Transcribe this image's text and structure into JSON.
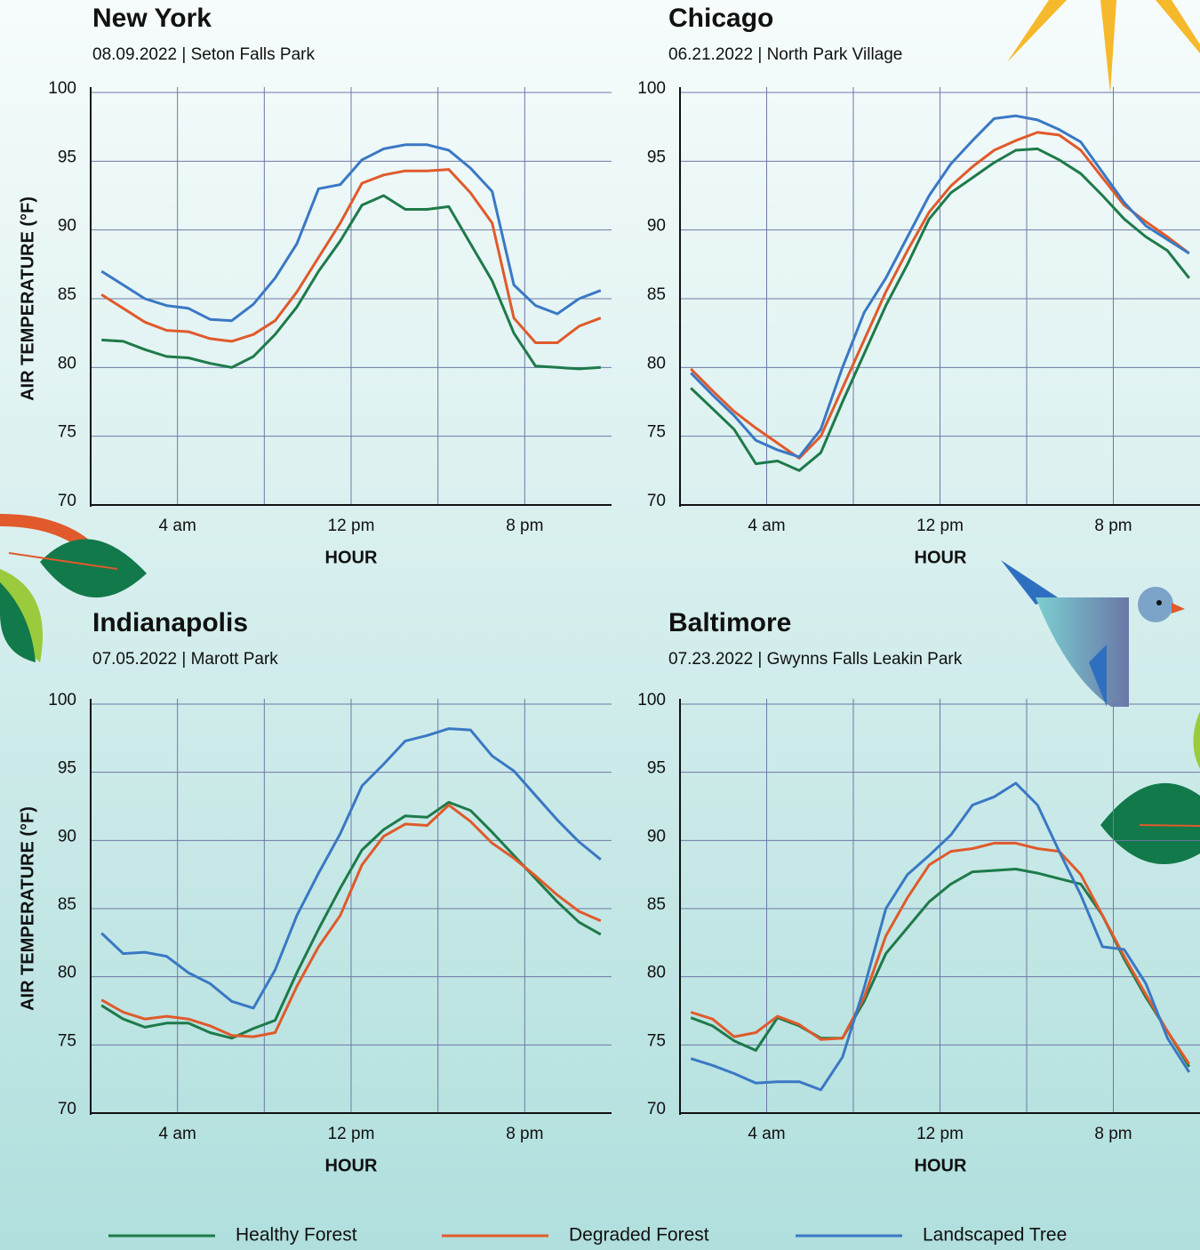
{
  "chart_data": [
    {
      "type": "line",
      "title": "New York",
      "subtitle": "08.09.2022  |  Seton Falls Park",
      "x_label": "HOUR",
      "y_label": "AIR TEMPERATURE (°F)",
      "x": [
        0.5,
        1.5,
        2.5,
        3.5,
        4.5,
        5.5,
        6.5,
        7.5,
        8.5,
        9.5,
        10.5,
        11.5,
        12.5,
        13.5,
        14.5,
        15.5,
        16.5,
        17.5,
        18.5,
        19.5,
        20.5,
        21.5,
        22.5,
        23.5
      ],
      "xlim": [
        0,
        24
      ],
      "xticks": [
        {
          "value": 4,
          "label": "4 am"
        },
        {
          "value": 8,
          "label": null
        },
        {
          "value": 12,
          "label": "12 pm"
        },
        {
          "value": 16,
          "label": null
        },
        {
          "value": 20,
          "label": "8 pm"
        }
      ],
      "ylim": [
        70,
        100
      ],
      "yticks": [
        70,
        75,
        80,
        85,
        90,
        95,
        100
      ],
      "grid": true,
      "series": [
        {
          "name": "Healthy Forest",
          "color": "#1e7a4a",
          "values": [
            82,
            81.9,
            81.3,
            80.8,
            80.7,
            80.3,
            80,
            80.8,
            82.4,
            84.4,
            87,
            89.2,
            91.8,
            92.5,
            91.5,
            91.5,
            91.7,
            89,
            86.3,
            82.5,
            80.1,
            80,
            79.9,
            80
          ]
        },
        {
          "name": "Degraded Forest",
          "color": "#e05a2b",
          "values": [
            85.3,
            84.3,
            83.3,
            82.7,
            82.6,
            82.1,
            81.9,
            82.4,
            83.4,
            85.5,
            88,
            90.5,
            93.4,
            94,
            94.3,
            94.3,
            94.4,
            92.7,
            90.5,
            83.6,
            81.8,
            81.8,
            83,
            83.6
          ]
        },
        {
          "name": "Landscaped Tree",
          "color": "#3a78c4",
          "values": [
            87,
            86,
            85,
            84.5,
            84.3,
            83.5,
            83.4,
            84.6,
            86.5,
            89,
            93,
            93.3,
            95.1,
            95.9,
            96.2,
            96.2,
            95.8,
            94.5,
            92.8,
            86,
            84.5,
            83.9,
            85,
            85.6
          ]
        }
      ]
    },
    {
      "type": "line",
      "title": "Chicago",
      "subtitle": "06.21.2022  |  North Park Village",
      "x_label": "HOUR",
      "x": [
        0.5,
        1.5,
        2.5,
        3.5,
        4.5,
        5.5,
        6.5,
        7.5,
        8.5,
        9.5,
        10.5,
        11.5,
        12.5,
        13.5,
        14.5,
        15.5,
        16.5,
        17.5,
        18.5,
        19.5,
        20.5,
        21.5,
        22.5,
        23.5
      ],
      "xlim": [
        0,
        24
      ],
      "xticks": [
        {
          "value": 4,
          "label": "4 am"
        },
        {
          "value": 8,
          "label": null
        },
        {
          "value": 12,
          "label": "12 pm"
        },
        {
          "value": 16,
          "label": null
        },
        {
          "value": 20,
          "label": "8 pm"
        }
      ],
      "ylim": [
        70,
        100
      ],
      "yticks": [
        70,
        75,
        80,
        85,
        90,
        95,
        100
      ],
      "grid": true,
      "series": [
        {
          "name": "Healthy Forest",
          "color": "#1e7a4a",
          "values": [
            78.5,
            77,
            75.5,
            73,
            73.2,
            72.5,
            73.8,
            77.5,
            81,
            84.5,
            87.5,
            90.8,
            92.7,
            93.8,
            94.9,
            95.8,
            95.9,
            95.1,
            94.1,
            92.5,
            90.8,
            89.5,
            88.5,
            86.5
          ]
        },
        {
          "name": "Degraded Forest",
          "color": "#e05a2b",
          "values": [
            79.9,
            78.3,
            76.8,
            75.6,
            74.5,
            73.4,
            75,
            78.5,
            82,
            85.5,
            88.5,
            91.3,
            93.2,
            94.6,
            95.8,
            96.5,
            97.1,
            96.9,
            95.8,
            93.8,
            91.8,
            90.6,
            89.5,
            88.3
          ]
        },
        {
          "name": "Landscaped Tree",
          "color": "#3a78c4",
          "values": [
            79.6,
            78,
            76.5,
            74.7,
            74,
            73.5,
            75.5,
            80,
            84,
            86.5,
            89.5,
            92.5,
            94.8,
            96.5,
            98.1,
            98.3,
            98,
            97.3,
            96.4,
            94.2,
            92,
            90.3,
            89.3,
            88.3
          ]
        }
      ]
    },
    {
      "type": "line",
      "title": "Indianapolis",
      "subtitle": "07.05.2022  |  Marott Park",
      "x_label": "HOUR",
      "y_label": "AIR TEMPERATURE (°F)",
      "x": [
        0.5,
        1.5,
        2.5,
        3.5,
        4.5,
        5.5,
        6.5,
        7.5,
        8.5,
        9.5,
        10.5,
        11.5,
        12.5,
        13.5,
        14.5,
        15.5,
        16.5,
        17.5,
        18.5,
        19.5,
        20.5,
        21.5,
        22.5,
        23.5
      ],
      "xlim": [
        0,
        24
      ],
      "xticks": [
        {
          "value": 4,
          "label": "4 am"
        },
        {
          "value": 8,
          "label": null
        },
        {
          "value": 12,
          "label": "12 pm"
        },
        {
          "value": 16,
          "label": null
        },
        {
          "value": 20,
          "label": "8 pm"
        }
      ],
      "ylim": [
        70,
        100
      ],
      "yticks": [
        70,
        75,
        80,
        85,
        90,
        95,
        100
      ],
      "grid": true,
      "series": [
        {
          "name": "Healthy Forest",
          "color": "#1e7a4a",
          "values": [
            77.9,
            76.9,
            76.3,
            76.6,
            76.6,
            75.9,
            75.5,
            76.2,
            76.8,
            80.3,
            83.5,
            86.5,
            89.3,
            90.8,
            91.8,
            91.7,
            92.8,
            92.2,
            90.6,
            88.9,
            87.2,
            85.5,
            84,
            83.1
          ]
        },
        {
          "name": "Degraded Forest",
          "color": "#e05a2b",
          "values": [
            78.3,
            77.4,
            76.9,
            77.1,
            76.9,
            76.4,
            75.7,
            75.6,
            75.9,
            79.3,
            82.2,
            84.5,
            88.2,
            90.3,
            91.2,
            91.1,
            92.6,
            91.4,
            89.8,
            88.7,
            87.4,
            86,
            84.8,
            84.1
          ]
        },
        {
          "name": "Landscaped Tree",
          "color": "#3a78c4",
          "values": [
            83.2,
            81.7,
            81.8,
            81.5,
            80.3,
            79.5,
            78.2,
            77.7,
            80.5,
            84.5,
            87.6,
            90.5,
            94,
            95.6,
            97.3,
            97.7,
            98.2,
            98.1,
            96.2,
            95.1,
            93.3,
            91.5,
            89.9,
            88.6
          ]
        }
      ]
    },
    {
      "type": "line",
      "title": "Baltimore",
      "subtitle": "07.23.2022  |  Gwynns Falls Leakin Park",
      "x_label": "HOUR",
      "x": [
        0.5,
        1.5,
        2.5,
        3.5,
        4.5,
        5.5,
        6.5,
        7.5,
        8.5,
        9.5,
        10.5,
        11.5,
        12.5,
        13.5,
        14.5,
        15.5,
        16.5,
        17.5,
        18.5,
        19.5,
        20.5,
        21.5,
        22.5,
        23.5
      ],
      "xlim": [
        0,
        24
      ],
      "xticks": [
        {
          "value": 4,
          "label": "4 am"
        },
        {
          "value": 8,
          "label": null
        },
        {
          "value": 12,
          "label": "12 pm"
        },
        {
          "value": 16,
          "label": null
        },
        {
          "value": 20,
          "label": "8 pm"
        }
      ],
      "ylim": [
        70,
        100
      ],
      "yticks": [
        70,
        75,
        80,
        85,
        90,
        95,
        100
      ],
      "grid": true,
      "series": [
        {
          "name": "Healthy Forest",
          "color": "#1e7a4a",
          "values": [
            77,
            76.4,
            75.3,
            74.6,
            77,
            76.4,
            75.5,
            75.5,
            78.2,
            81.7,
            83.6,
            85.5,
            86.8,
            87.7,
            87.8,
            87.9,
            87.6,
            87.2,
            86.8,
            84.5,
            81.3,
            78.5,
            76,
            73.4
          ]
        },
        {
          "name": "Degraded Forest",
          "color": "#e05a2b",
          "values": [
            77.4,
            76.9,
            75.6,
            75.9,
            77.1,
            76.5,
            75.4,
            75.5,
            78.5,
            83,
            85.8,
            88.2,
            89.2,
            89.4,
            89.8,
            89.8,
            89.4,
            89.2,
            87.5,
            84.5,
            81.5,
            78.7,
            76,
            73.6
          ]
        },
        {
          "name": "Landscaped Tree",
          "color": "#3a78c4",
          "values": [
            74,
            73.5,
            72.9,
            72.2,
            72.3,
            72.3,
            71.7,
            74.1,
            79.2,
            85,
            87.5,
            88.9,
            90.4,
            92.6,
            93.2,
            94.2,
            92.6,
            89.2,
            86,
            82.2,
            82,
            79.5,
            75.5,
            73
          ]
        }
      ]
    }
  ]
}
